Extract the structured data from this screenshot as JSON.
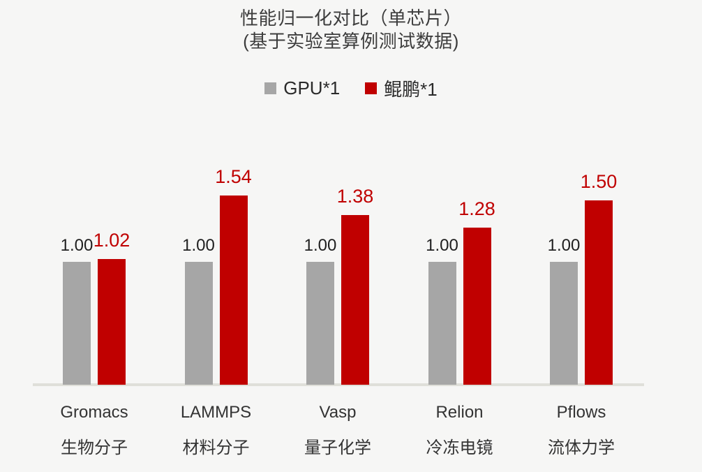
{
  "chart_data": {
    "type": "bar",
    "title": "性能归一化对比（单芯片）",
    "subtitle": "(基于实验室算例测试数据)",
    "categories": [
      "Gromacs",
      "LAMMPS",
      "Vasp",
      "Relion",
      "Pflows"
    ],
    "category_sublabels": [
      "生物分子",
      "材料分子",
      "量子化学",
      "冷冻电镜",
      "流体力学"
    ],
    "series": [
      {
        "name": "GPU*1",
        "color": "#a6a6a6",
        "label_color": "#1f1f1f",
        "values": [
          1.0,
          1.0,
          1.0,
          1.0,
          1.0
        ],
        "labels": [
          "1.00",
          "1.00",
          "1.00",
          "1.00",
          "1.00"
        ]
      },
      {
        "name": "鲲鹏*1",
        "color": "#c00000",
        "label_color": "#c00000",
        "values": [
          1.02,
          1.54,
          1.38,
          1.28,
          1.5
        ],
        "labels": [
          "1.02",
          "1.54",
          "1.38",
          "1.28",
          "1.50"
        ]
      }
    ],
    "ylim": [
      0,
      1.7
    ],
    "grid": false,
    "y_axis_visible": false,
    "legend_position": "top",
    "data_labels": true
  },
  "colors": {
    "background": "#f6f6f5",
    "axis_line": "#dfdfd9",
    "title_text": "#3d3d3d"
  }
}
